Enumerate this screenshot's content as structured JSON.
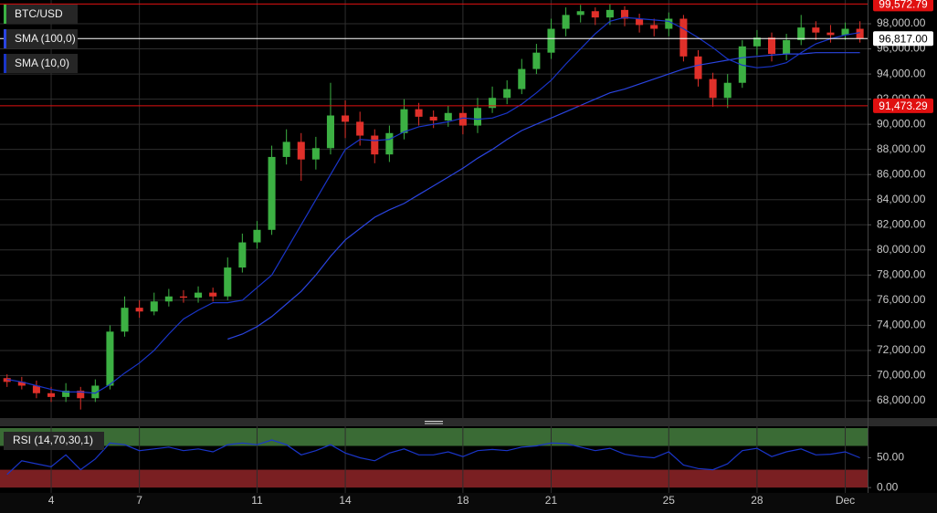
{
  "chart_data": [
    {
      "type": "candlestick",
      "x": [
        2.5,
        3,
        3.5,
        4,
        4.5,
        5,
        5.5,
        6,
        6.5,
        7,
        7.5,
        8,
        8.5,
        9,
        9.5,
        10,
        10.5,
        11,
        11.5,
        12,
        12.5,
        13,
        13.5,
        14,
        14.5,
        15,
        15.5,
        16,
        16.5,
        17,
        17.5,
        18,
        18.5,
        19,
        19.5,
        20,
        20.5,
        21,
        21.5,
        22,
        22.5,
        23,
        23.5,
        24,
        24.5,
        25,
        25.5,
        26,
        26.5,
        27,
        27.5,
        28,
        28.5,
        29,
        29.5,
        30,
        30.5,
        31,
        31.5
      ],
      "xlim": [
        2.26,
        31.76
      ],
      "xticks": [
        4,
        7,
        11,
        14,
        18,
        21,
        25,
        28,
        {
          "value": 31,
          "label": "Dec"
        }
      ],
      "ylim": [
        66620,
        99890
      ],
      "yticks": [
        {
          "value": 68000,
          "label": "68,000.00"
        },
        {
          "value": 70000,
          "label": "70,000.00"
        },
        {
          "value": 72000,
          "label": "72,000.00"
        },
        {
          "value": 74000,
          "label": "74,000.00"
        },
        {
          "value": 76000,
          "label": "76,000.00"
        },
        {
          "value": 78000,
          "label": "78,000.00"
        },
        {
          "value": 80000,
          "label": "80,000.00"
        },
        {
          "value": 82000,
          "label": "82,000.00"
        },
        {
          "value": 84000,
          "label": "84,000.00"
        },
        {
          "value": 86000,
          "label": "86,000.00"
        },
        {
          "value": 88000,
          "label": "88,000.00"
        },
        {
          "value": 90000,
          "label": "90,000.00"
        },
        {
          "value": 92000,
          "label": "92,000.00"
        },
        {
          "value": 94000,
          "label": "94,000.00"
        },
        {
          "value": 96000,
          "label": "96,000.00"
        },
        {
          "value": 98000,
          "label": "98,000.00"
        }
      ],
      "grid": true,
      "series": [
        {
          "name": "BTC/USD",
          "color": "#3cb043",
          "down_color": "#e0302a",
          "open": [
            69800,
            69500,
            69200,
            68600,
            68300,
            68800,
            68200,
            69200,
            73500,
            75400,
            75100,
            75900,
            76300,
            76200,
            76600,
            76300,
            78600,
            80600,
            81600,
            87400,
            88600,
            87200,
            88100,
            90700,
            90200,
            89100,
            87600,
            89300,
            91200,
            90600,
            90300,
            90900,
            89900,
            91300,
            92100,
            92800,
            94400,
            95700,
            97600,
            98700,
            99000,
            98500,
            99100,
            98400,
            97900,
            97600,
            98400,
            95400,
            93600,
            92100,
            93300,
            96200,
            96900,
            95600,
            96700,
            97700,
            97300,
            97100,
            97600
          ],
          "high": [
            70100,
            69900,
            69600,
            69100,
            69400,
            69100,
            69700,
            74000,
            76300,
            76000,
            76600,
            76900,
            76800,
            77100,
            77000,
            79400,
            81300,
            82300,
            88300,
            89600,
            89300,
            89000,
            93300,
            91900,
            91000,
            89600,
            89900,
            92000,
            91700,
            91100,
            91500,
            91400,
            92100,
            93000,
            93500,
            95200,
            96400,
            98400,
            99300,
            99500,
            99300,
            99550,
            99400,
            98800,
            98400,
            98900,
            98700,
            95900,
            94100,
            94000,
            96700,
            97500,
            97300,
            97200,
            98700,
            98200,
            97900,
            98100,
            98200
          ],
          "low": [
            69100,
            68900,
            68200,
            67900,
            67900,
            67300,
            67900,
            68900,
            73100,
            74600,
            74800,
            75500,
            75800,
            75800,
            75900,
            76000,
            78200,
            80100,
            81200,
            86800,
            85500,
            86400,
            87600,
            88900,
            88300,
            86900,
            87000,
            88800,
            89900,
            89700,
            89800,
            89200,
            89300,
            90900,
            91600,
            92400,
            94000,
            95200,
            97000,
            98100,
            97900,
            97900,
            97800,
            97300,
            97000,
            97000,
            95000,
            93000,
            91400,
            91300,
            92900,
            95500,
            95000,
            95100,
            96300,
            96700,
            96500,
            96700,
            96500
          ],
          "close": [
            69500,
            69200,
            68600,
            68300,
            68800,
            68200,
            69200,
            73500,
            75400,
            75100,
            75900,
            76300,
            76200,
            76600,
            76300,
            78600,
            80600,
            81600,
            87400,
            88600,
            87200,
            88100,
            90700,
            90200,
            89100,
            87600,
            89300,
            91200,
            90600,
            90300,
            90900,
            89900,
            91300,
            92100,
            92800,
            94400,
            95700,
            97600,
            98700,
            99000,
            98500,
            99100,
            98400,
            97900,
            97600,
            98400,
            95400,
            93600,
            92100,
            93300,
            96200,
            96900,
            95600,
            96700,
            97700,
            97300,
            97100,
            97600,
            96817
          ]
        },
        {
          "name": "SMA (100,0)",
          "color": "#2a44e0",
          "values": [
            null,
            null,
            null,
            null,
            null,
            null,
            null,
            null,
            null,
            null,
            null,
            null,
            null,
            null,
            null,
            72900,
            73300,
            73900,
            74700,
            75700,
            76700,
            78000,
            79500,
            80800,
            81700,
            82600,
            83200,
            83700,
            84400,
            85100,
            85800,
            86500,
            87300,
            88000,
            88800,
            89500,
            90000,
            90500,
            91000,
            91500,
            92000,
            92500,
            92800,
            93200,
            93600,
            94000,
            94400,
            94700,
            94900,
            95100,
            95300,
            95400,
            95500,
            95600,
            95600,
            95700,
            95700,
            95700,
            95700
          ]
        },
        {
          "name": "SMA (10,0)",
          "color": "#1a35c8",
          "values": [
            69700,
            69500,
            69200,
            68900,
            68700,
            68700,
            68600,
            69300,
            70200,
            71000,
            72000,
            73300,
            74500,
            75200,
            75800,
            75800,
            76000,
            77000,
            78000,
            80000,
            82000,
            84000,
            86000,
            88000,
            88800,
            88700,
            88800,
            89400,
            89800,
            90000,
            90200,
            90500,
            90400,
            90500,
            90900,
            91600,
            92500,
            93500,
            94800,
            96000,
            97200,
            98200,
            98500,
            98400,
            98300,
            98200,
            97600,
            96900,
            96100,
            95200,
            94700,
            94500,
            94600,
            94900,
            95700,
            96400,
            96800,
            97100,
            97300
          ]
        }
      ],
      "price_lines": [
        {
          "value": 99572.79,
          "label": "99,572.79",
          "color": "#e01010"
        },
        {
          "value": 96817.0,
          "label": "96,817.00",
          "color": "#ffffff"
        },
        {
          "value": 91473.29,
          "label": "91,473.29",
          "color": "#e01010"
        }
      ]
    },
    {
      "type": "line",
      "title": "RSI (14,70,30,1)",
      "color": "#1a35c8",
      "values": [
        22,
        45,
        40,
        35,
        55,
        30,
        48,
        75,
        72,
        62,
        65,
        68,
        62,
        65,
        60,
        72,
        75,
        72,
        80,
        72,
        55,
        62,
        72,
        58,
        50,
        45,
        58,
        65,
        55,
        55,
        60,
        52,
        62,
        64,
        62,
        68,
        70,
        75,
        74,
        68,
        62,
        66,
        56,
        52,
        50,
        60,
        38,
        32,
        30,
        40,
        62,
        66,
        52,
        60,
        65,
        55,
        56,
        60,
        50
      ],
      "ylim": [
        -9,
        103
      ],
      "yticks": [
        {
          "value": 50,
          "label": "50.00"
        },
        {
          "value": 0,
          "label": "0.00"
        }
      ],
      "zones": [
        {
          "from": 70,
          "to": 100,
          "color": "#3a6b35"
        },
        {
          "from": 0,
          "to": 30,
          "color": "#7a1f22"
        }
      ]
    }
  ]
}
